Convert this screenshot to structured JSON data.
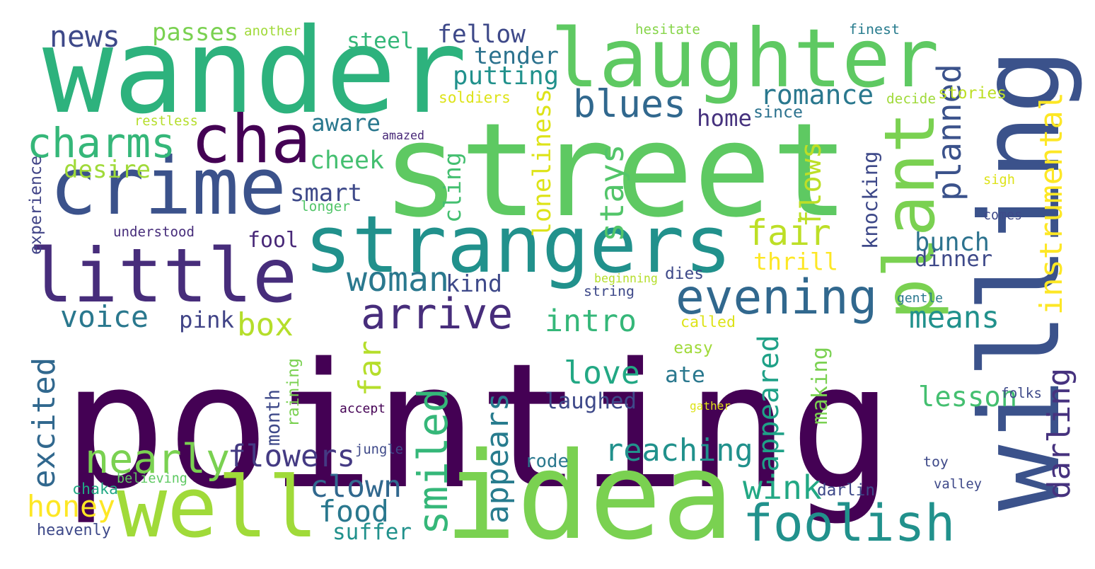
{
  "words": [
    {
      "text": "pointing",
      "color": "#440154",
      "orientation": "horizontal"
    },
    {
      "text": "street",
      "color": "#5ec962",
      "orientation": "horizontal"
    },
    {
      "text": "idea",
      "color": "#7ad151",
      "orientation": "horizontal"
    },
    {
      "text": "willing",
      "color": "#3b528b",
      "orientation": "vertical"
    },
    {
      "text": "wander",
      "color": "#2db27d",
      "orientation": "horizontal"
    },
    {
      "text": "laughter",
      "color": "#5ec962",
      "orientation": "horizontal"
    },
    {
      "text": "strangers",
      "color": "#21918c",
      "orientation": "horizontal"
    },
    {
      "text": "little",
      "color": "#472d7b",
      "orientation": "horizontal"
    },
    {
      "text": "crime",
      "color": "#3b528b",
      "orientation": "horizontal"
    },
    {
      "text": "well",
      "color": "#a0da39",
      "orientation": "horizontal"
    },
    {
      "text": "plant",
      "color": "#7ad151",
      "orientation": "vertical"
    },
    {
      "text": "cha",
      "color": "#440154",
      "orientation": "horizontal"
    },
    {
      "text": "foolish",
      "color": "#21918c",
      "orientation": "horizontal"
    },
    {
      "text": "evening",
      "color": "#31688e",
      "orientation": "horizontal"
    },
    {
      "text": "arrive",
      "color": "#472d7b",
      "orientation": "horizontal"
    },
    {
      "text": "charms",
      "color": "#35b779",
      "orientation": "horizontal"
    },
    {
      "text": "blues",
      "color": "#31688e",
      "orientation": "horizontal"
    },
    {
      "text": "nearly",
      "color": "#7ad151",
      "orientation": "horizontal"
    },
    {
      "text": "smiled",
      "color": "#35b779",
      "orientation": "vertical"
    },
    {
      "text": "reaching",
      "color": "#21918c",
      "orientation": "horizontal"
    },
    {
      "text": "instrumental",
      "color": "#fde725",
      "orientation": "vertical"
    },
    {
      "text": "fair",
      "color": "#bddf26",
      "orientation": "horizontal"
    },
    {
      "text": "flowers",
      "color": "#443a83",
      "orientation": "horizontal"
    },
    {
      "text": "appears",
      "color": "#287c8e",
      "orientation": "vertical"
    },
    {
      "text": "clown",
      "color": "#31688e",
      "orientation": "horizontal"
    },
    {
      "text": "romance",
      "color": "#2a788e",
      "orientation": "horizontal"
    },
    {
      "text": "intro",
      "color": "#35b779",
      "orientation": "horizontal"
    },
    {
      "text": "voice",
      "color": "#2a788e",
      "orientation": "horizontal"
    },
    {
      "text": "woman",
      "color": "#2a788e",
      "orientation": "horizontal"
    },
    {
      "text": "excited",
      "color": "#31688e",
      "orientation": "vertical"
    },
    {
      "text": "honey",
      "color": "#fde725",
      "orientation": "horizontal"
    },
    {
      "text": "food",
      "color": "#2a788e",
      "orientation": "horizontal"
    },
    {
      "text": "love",
      "color": "#22a884",
      "orientation": "horizontal"
    },
    {
      "text": "lesson",
      "color": "#44bf70",
      "orientation": "horizontal"
    },
    {
      "text": "wink",
      "color": "#22a884",
      "orientation": "horizontal"
    },
    {
      "text": "planned",
      "color": "#3b528b",
      "orientation": "vertical"
    },
    {
      "text": "darling",
      "color": "#46327e",
      "orientation": "vertical"
    },
    {
      "text": "thrill",
      "color": "#fde725",
      "orientation": "horizontal"
    },
    {
      "text": "loneliness",
      "color": "#dde318",
      "orientation": "vertical"
    },
    {
      "text": "box",
      "color": "#b5de2b",
      "orientation": "horizontal"
    },
    {
      "text": "means",
      "color": "#21918c",
      "orientation": "horizontal"
    },
    {
      "text": "news",
      "color": "#3e4989",
      "orientation": "horizontal"
    },
    {
      "text": "far",
      "color": "#b5de2b",
      "orientation": "vertical"
    },
    {
      "text": "fellow",
      "color": "#3e4989",
      "orientation": "horizontal"
    },
    {
      "text": "steel",
      "color": "#35b779",
      "orientation": "horizontal"
    },
    {
      "text": "passes",
      "color": "#7ad151",
      "orientation": "horizontal"
    },
    {
      "text": "putting",
      "color": "#21918c",
      "orientation": "horizontal"
    },
    {
      "text": "tender",
      "color": "#2c728e",
      "orientation": "horizontal"
    },
    {
      "text": "cheek",
      "color": "#44bf70",
      "orientation": "horizontal"
    },
    {
      "text": "aware",
      "color": "#2a788e",
      "orientation": "horizontal"
    },
    {
      "text": "smart",
      "color": "#3e4989",
      "orientation": "horizontal"
    },
    {
      "text": "cling",
      "color": "#44bf70",
      "orientation": "vertical"
    },
    {
      "text": "stays",
      "color": "#52c569",
      "orientation": "vertical"
    },
    {
      "text": "flows",
      "color": "#bddf26",
      "orientation": "vertical"
    },
    {
      "text": "bunch",
      "color": "#2c728e",
      "orientation": "horizontal"
    },
    {
      "text": "dinner",
      "color": "#3e4989",
      "orientation": "horizontal"
    },
    {
      "text": "suffer",
      "color": "#21918c",
      "orientation": "horizontal"
    },
    {
      "text": "laughed",
      "color": "#3e4989",
      "orientation": "horizontal"
    },
    {
      "text": "appeared",
      "color": "#1fa187",
      "orientation": "vertical"
    },
    {
      "text": "making",
      "color": "#7ad151",
      "orientation": "vertical"
    },
    {
      "text": "ate",
      "color": "#2a788e",
      "orientation": "horizontal"
    },
    {
      "text": "month",
      "color": "#3e4989",
      "orientation": "vertical"
    },
    {
      "text": "rode",
      "color": "#2a788e",
      "orientation": "horizontal"
    },
    {
      "text": "pink",
      "color": "#414487",
      "orientation": "horizontal"
    },
    {
      "text": "kind",
      "color": "#3e4989",
      "orientation": "horizontal"
    },
    {
      "text": "fool",
      "color": "#482878",
      "orientation": "horizontal"
    },
    {
      "text": "home",
      "color": "#46327e",
      "orientation": "horizontal"
    },
    {
      "text": "desire",
      "color": "#a0da39",
      "orientation": "horizontal"
    },
    {
      "text": "knocking",
      "color": "#3e4989",
      "orientation": "vertical"
    },
    {
      "text": "another",
      "color": "#a0da39",
      "orientation": "horizontal"
    },
    {
      "text": "hesitate",
      "color": "#86d549",
      "orientation": "horizontal"
    },
    {
      "text": "finest",
      "color": "#287c8e",
      "orientation": "horizontal"
    },
    {
      "text": "soldiers",
      "color": "#dde318",
      "orientation": "horizontal"
    },
    {
      "text": "restless",
      "color": "#b5de2b",
      "orientation": "horizontal"
    },
    {
      "text": "amazed",
      "color": "#482878",
      "orientation": "horizontal"
    },
    {
      "text": "since",
      "color": "#2c728e",
      "orientation": "horizontal"
    },
    {
      "text": "decide",
      "color": "#a0da39",
      "orientation": "horizontal"
    },
    {
      "text": "stories",
      "color": "#bddf26",
      "orientation": "horizontal"
    },
    {
      "text": "experience",
      "color": "#414487",
      "orientation": "vertical"
    },
    {
      "text": "longer",
      "color": "#52c569",
      "orientation": "horizontal"
    },
    {
      "text": "understood",
      "color": "#472d7b",
      "orientation": "horizontal"
    },
    {
      "text": "sigh",
      "color": "#dde318",
      "orientation": "horizontal"
    },
    {
      "text": "comes",
      "color": "#3e4989",
      "orientation": "horizontal"
    },
    {
      "text": "beginning",
      "color": "#b5de2b",
      "orientation": "horizontal"
    },
    {
      "text": "dies",
      "color": "#3e4989",
      "orientation": "horizontal"
    },
    {
      "text": "string",
      "color": "#3e4989",
      "orientation": "horizontal"
    },
    {
      "text": "gentle",
      "color": "#2a788e",
      "orientation": "horizontal"
    },
    {
      "text": "called",
      "color": "#dde318",
      "orientation": "horizontal"
    },
    {
      "text": "easy",
      "color": "#a0da39",
      "orientation": "horizontal"
    },
    {
      "text": "raining",
      "color": "#7ad151",
      "orientation": "vertical"
    },
    {
      "text": "accept",
      "color": "#440154",
      "orientation": "horizontal"
    },
    {
      "text": "gather",
      "color": "#dde318",
      "orientation": "horizontal"
    },
    {
      "text": "folks",
      "color": "#3e4989",
      "orientation": "horizontal"
    },
    {
      "text": "jungle",
      "color": "#3e4989",
      "orientation": "horizontal"
    },
    {
      "text": "chaka",
      "color": "#22a884",
      "orientation": "horizontal"
    },
    {
      "text": "believing",
      "color": "#5ec962",
      "orientation": "horizontal"
    },
    {
      "text": "darlin",
      "color": "#3e4989",
      "orientation": "horizontal"
    },
    {
      "text": "toy",
      "color": "#3e4989",
      "orientation": "horizontal"
    },
    {
      "text": "valley",
      "color": "#3e4989",
      "orientation": "horizontal"
    },
    {
      "text": "heavenly",
      "color": "#3e4989",
      "orientation": "horizontal"
    }
  ]
}
